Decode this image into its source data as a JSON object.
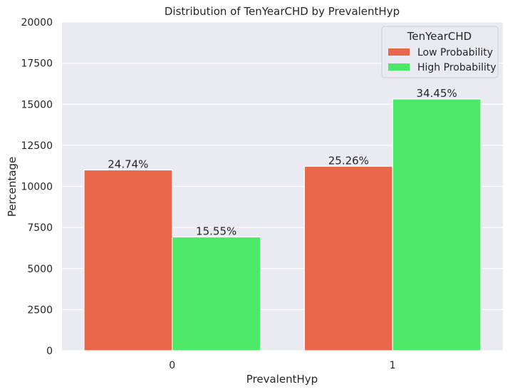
{
  "chart_data": {
    "type": "bar",
    "title": "Distribution of TenYearCHD by PrevalentHyp",
    "xlabel": "PrevalentHyp",
    "ylabel": "Percentage",
    "categories": [
      "0",
      "1"
    ],
    "ylim": [
      0,
      20000
    ],
    "yticks": [
      "0",
      "2500",
      "5000",
      "7500",
      "10000",
      "12500",
      "15000",
      "17500",
      "20000"
    ],
    "ytick_values": [
      0,
      2500,
      5000,
      7500,
      10000,
      12500,
      15000,
      17500,
      20000
    ],
    "grid": true,
    "legend": {
      "title": "TenYearCHD",
      "placement": "top-right"
    },
    "series": [
      {
        "name": "Low Probability",
        "color": "#E8674A",
        "values": [
          11000,
          11220
        ],
        "labels": [
          "24.74%",
          "25.26%"
        ]
      },
      {
        "name": "High Probability",
        "color": "#4CE868",
        "values": [
          6920,
          15320
        ],
        "labels": [
          "15.55%",
          "34.45%"
        ]
      }
    ]
  }
}
